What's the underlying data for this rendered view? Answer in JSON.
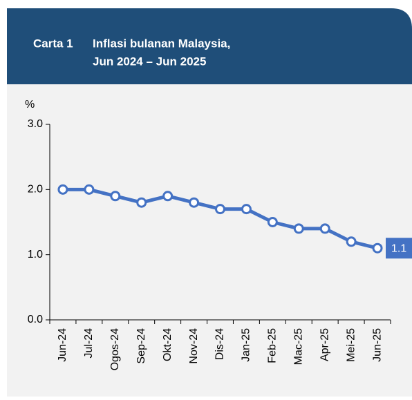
{
  "chart_data": {
    "type": "line",
    "label": "Carta 1",
    "title_lines": [
      "Inflasi bulanan Malaysia,",
      "Jun 2024 – Jun 2025"
    ],
    "y_unit": "%",
    "categories": [
      "Jun-24",
      "Jul-24",
      "Ogos-24",
      "Sep-24",
      "Okt-24",
      "Nov-24",
      "Dis-24",
      "Jan-25",
      "Feb-25",
      "Mac-25",
      "Apr-25",
      "Mei-25",
      "Jun-25"
    ],
    "series": [
      {
        "name": "Inflasi",
        "color": "#4472c4",
        "values": [
          2.0,
          2.0,
          1.9,
          1.8,
          1.9,
          1.8,
          1.7,
          1.7,
          1.5,
          1.4,
          1.4,
          1.2,
          1.1
        ]
      }
    ],
    "ylim": [
      0,
      3
    ],
    "yticks": [
      {
        "value": 0,
        "label": "0.0"
      },
      {
        "value": 1,
        "label": "1.0"
      },
      {
        "value": 2,
        "label": "2.0"
      },
      {
        "value": 3,
        "label": "3.0"
      }
    ],
    "last_value_label": true
  }
}
